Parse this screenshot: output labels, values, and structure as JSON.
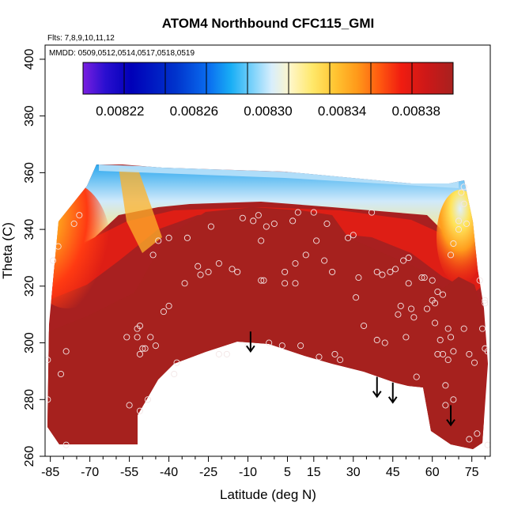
{
  "chart_data": {
    "type": "heatmap",
    "title": "ATOM4 Northbound CFC115_GMI",
    "subtitle_flights": "Flts: 7,8,9,10,11,12",
    "subtitle_dates": "MMDD: 0509,0512,0514,0517,0518,0519",
    "xlabel": "Latitude (deg N)",
    "ylabel": "Theta (C)",
    "xlim": [
      -87,
      82
    ],
    "ylim": [
      260,
      405
    ],
    "xticks": [
      -85,
      -70,
      -55,
      -40,
      -25,
      -10,
      5,
      15,
      30,
      45,
      60,
      75
    ],
    "xtick_labels": [
      "-85",
      "-70",
      "-55",
      "-40",
      "-25",
      "-10",
      "5",
      "15",
      "30",
      "45",
      "60",
      "75"
    ],
    "yticks": [
      260,
      280,
      300,
      320,
      340,
      360,
      380,
      400
    ],
    "ytick_labels": [
      "260",
      "280",
      "300",
      "320",
      "340",
      "360",
      "380",
      "400"
    ],
    "colorbar": {
      "range": [
        0.0082,
        0.0084
      ],
      "tick_values": [
        0.00822,
        0.00826,
        0.0083,
        0.00834,
        0.00838
      ],
      "tick_labels": [
        "0.00822",
        "0.00826",
        "0.00830",
        "0.00834",
        "0.00838"
      ],
      "colors": [
        "#7a1fe0",
        "#2a0fd0",
        "#0000b8",
        "#0033cc",
        "#0a6ef0",
        "#19aef5",
        "#7fd3fb",
        "#d8eefc",
        "#fff6c8",
        "#ffe86a",
        "#ffc532",
        "#ff9a1a",
        "#ff5a10",
        "#f01c10",
        "#cc1818",
        "#a8211f"
      ]
    },
    "field_notes": "Concentration mostly ~0.00838-0.0084 (dark red) below ~345 K; lower values (0.00826-0.00832) in a thin layer near 355-360 K and near the southern/northern upper edges.",
    "tropopause_arrows_x": [
      -9,
      39,
      45,
      67
    ],
    "tropopause_arrows_top_y": [
      304,
      288,
      286,
      278
    ],
    "tropopause_arrows_bottom_y": [
      297,
      281,
      279,
      271
    ],
    "observations": [
      [
        -86,
        294
      ],
      [
        -86,
        280
      ],
      [
        -84,
        329
      ],
      [
        -82,
        334
      ],
      [
        -81,
        289
      ],
      [
        -79,
        297
      ],
      [
        -79,
        264
      ],
      [
        -76,
        342
      ],
      [
        -74,
        345
      ],
      [
        -56,
        302
      ],
      [
        -55,
        278
      ],
      [
        -52,
        305
      ],
      [
        -52,
        302
      ],
      [
        -51,
        296
      ],
      [
        -51,
        306
      ],
      [
        -50,
        298
      ],
      [
        -49,
        298
      ],
      [
        -51,
        276
      ],
      [
        -48,
        280
      ],
      [
        -47,
        302
      ],
      [
        -46,
        331
      ],
      [
        -45,
        299
      ],
      [
        -44,
        336
      ],
      [
        -42,
        311
      ],
      [
        -40,
        313
      ],
      [
        -40,
        337
      ],
      [
        -38,
        289
      ],
      [
        -37,
        293
      ],
      [
        -34,
        321
      ],
      [
        -33,
        337
      ],
      [
        -29,
        327
      ],
      [
        -28,
        324
      ],
      [
        -25,
        325
      ],
      [
        -24,
        341
      ],
      [
        -21,
        296
      ],
      [
        -21,
        328
      ],
      [
        -18,
        296
      ],
      [
        -16,
        326
      ],
      [
        -14,
        325
      ],
      [
        -12,
        344
      ],
      [
        -10,
        299
      ],
      [
        -8,
        343
      ],
      [
        -6,
        345
      ],
      [
        -5,
        336
      ],
      [
        -5,
        322
      ],
      [
        -4,
        322
      ],
      [
        -3,
        341
      ],
      [
        -2,
        300
      ],
      [
        0,
        342
      ],
      [
        3,
        299
      ],
      [
        4,
        321
      ],
      [
        4,
        325
      ],
      [
        7,
        343
      ],
      [
        8,
        328
      ],
      [
        8,
        321
      ],
      [
        9,
        346
      ],
      [
        10,
        299
      ],
      [
        12,
        331
      ],
      [
        15,
        346
      ],
      [
        16,
        336
      ],
      [
        17,
        295
      ],
      [
        19,
        329
      ],
      [
        20,
        342
      ],
      [
        22,
        325
      ],
      [
        23,
        296
      ],
      [
        25,
        294
      ],
      [
        28,
        337
      ],
      [
        30,
        338
      ],
      [
        31,
        316
      ],
      [
        32,
        323
      ],
      [
        34,
        306
      ],
      [
        37,
        346
      ],
      [
        39,
        325
      ],
      [
        39,
        301
      ],
      [
        41,
        324
      ],
      [
        42,
        300
      ],
      [
        44,
        325
      ],
      [
        46,
        326
      ],
      [
        47,
        310
      ],
      [
        48,
        313
      ],
      [
        49,
        329
      ],
      [
        50,
        302
      ],
      [
        51,
        321
      ],
      [
        51,
        330
      ],
      [
        52,
        312
      ],
      [
        53,
        309
      ],
      [
        54,
        288
      ],
      [
        56,
        323
      ],
      [
        57,
        323
      ],
      [
        58,
        312
      ],
      [
        60,
        322
      ],
      [
        60,
        315
      ],
      [
        61,
        314
      ],
      [
        61,
        307
      ],
      [
        62,
        318
      ],
      [
        62,
        296
      ],
      [
        64,
        296
      ],
      [
        63,
        301
      ],
      [
        64,
        317
      ],
      [
        65,
        285
      ],
      [
        65,
        278
      ],
      [
        66,
        294
      ],
      [
        66,
        305
      ],
      [
        67,
        302
      ],
      [
        68,
        297
      ],
      [
        67,
        331
      ],
      [
        68,
        280
      ],
      [
        68,
        335
      ],
      [
        70,
        340
      ],
      [
        70,
        343
      ],
      [
        71,
        353
      ],
      [
        72,
        355
      ],
      [
        72,
        349
      ],
      [
        72,
        305
      ],
      [
        73,
        342
      ],
      [
        74,
        296
      ],
      [
        74,
        266
      ],
      [
        76,
        293
      ],
      [
        77,
        268
      ],
      [
        78,
        322
      ],
      [
        79,
        305
      ],
      [
        80,
        298
      ],
      [
        80,
        315
      ],
      [
        80,
        314
      ],
      [
        81,
        264
      ],
      [
        81,
        297
      ]
    ]
  }
}
